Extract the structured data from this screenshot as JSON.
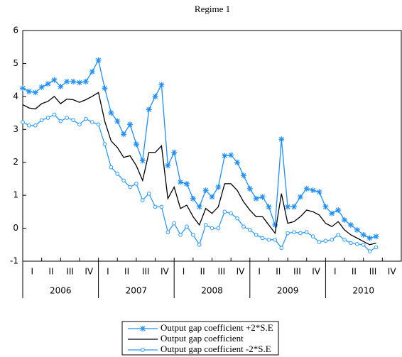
{
  "chart_data": {
    "type": "line",
    "title": "Regime 1",
    "x": [
      2006.0,
      2006.083,
      2006.167,
      2006.25,
      2006.333,
      2006.417,
      2006.5,
      2006.583,
      2006.667,
      2006.75,
      2006.833,
      2006.917,
      2007.0,
      2007.083,
      2007.167,
      2007.25,
      2007.333,
      2007.417,
      2007.5,
      2007.583,
      2007.667,
      2007.75,
      2007.833,
      2007.917,
      2008.0,
      2008.083,
      2008.167,
      2008.25,
      2008.333,
      2008.417,
      2008.5,
      2008.583,
      2008.667,
      2008.75,
      2008.833,
      2008.917,
      2009.0,
      2009.083,
      2009.167,
      2009.25,
      2009.333,
      2009.417,
      2009.5,
      2009.583,
      2009.667,
      2009.75,
      2009.833,
      2009.917,
      2010.0,
      2010.083,
      2010.167,
      2010.25,
      2010.333,
      2010.417,
      2010.5,
      2010.583,
      2010.667
    ],
    "series": [
      {
        "name": "Output gap coefficient +2*S.E",
        "color": "#1f8fff",
        "marker": "star",
        "values": [
          4.25,
          4.15,
          4.12,
          4.28,
          4.38,
          4.5,
          4.3,
          4.45,
          4.45,
          4.42,
          4.45,
          4.75,
          5.1,
          4.25,
          3.5,
          3.25,
          2.85,
          3.15,
          2.55,
          2.05,
          3.6,
          4.0,
          4.35,
          1.9,
          2.3,
          1.4,
          1.35,
          0.9,
          0.65,
          1.15,
          0.95,
          1.25,
          2.2,
          2.22,
          2.0,
          1.6,
          1.2,
          0.9,
          0.95,
          0.65,
          0.1,
          2.7,
          0.65,
          0.65,
          0.95,
          1.2,
          1.15,
          1.1,
          0.65,
          0.45,
          0.55,
          0.25,
          0.1,
          -0.05,
          -0.2,
          -0.3,
          -0.25
        ]
      },
      {
        "name": "Output gap coefficient",
        "color": "#000000",
        "marker": null,
        "values": [
          3.75,
          3.65,
          3.62,
          3.78,
          3.85,
          4.0,
          3.78,
          3.92,
          3.9,
          3.82,
          3.9,
          4.0,
          4.12,
          3.25,
          2.65,
          2.45,
          2.15,
          2.2,
          1.9,
          1.45,
          2.3,
          2.3,
          2.5,
          0.9,
          1.25,
          0.6,
          0.7,
          0.35,
          0.1,
          0.6,
          0.45,
          0.65,
          1.35,
          1.35,
          1.15,
          0.8,
          0.55,
          0.35,
          0.35,
          0.1,
          -0.15,
          1.05,
          0.15,
          0.2,
          0.35,
          0.55,
          0.5,
          0.4,
          0.15,
          0.05,
          0.2,
          -0.05,
          -0.2,
          -0.3,
          -0.4,
          -0.5,
          -0.45
        ]
      },
      {
        "name": "Output gap coefficient -2*S.E",
        "color": "#2a9bff",
        "marker": "circle",
        "values": [
          3.22,
          3.12,
          3.12,
          3.28,
          3.35,
          3.45,
          3.25,
          3.35,
          3.28,
          3.15,
          3.32,
          3.22,
          3.15,
          2.55,
          1.85,
          1.65,
          1.45,
          1.25,
          1.35,
          0.85,
          1.05,
          0.65,
          0.65,
          -0.12,
          0.15,
          -0.2,
          0.05,
          -0.2,
          -0.5,
          0.1,
          0.0,
          0.0,
          0.5,
          0.45,
          0.3,
          0.05,
          -0.05,
          -0.2,
          -0.3,
          -0.35,
          -0.35,
          -0.6,
          -0.15,
          -0.12,
          -0.15,
          -0.12,
          -0.25,
          -0.42,
          -0.38,
          -0.35,
          -0.2,
          -0.35,
          -0.45,
          -0.48,
          -0.5,
          -0.7,
          -0.58
        ]
      }
    ],
    "xlim": [
      2006,
      2011
    ],
    "xticks": [
      {
        "value": 2006.125,
        "label": "I"
      },
      {
        "value": 2006.375,
        "label": "II"
      },
      {
        "value": 2006.625,
        "label": "III"
      },
      {
        "value": 2006.875,
        "label": "IV"
      },
      {
        "value": 2007.125,
        "label": "I"
      },
      {
        "value": 2007.375,
        "label": "II"
      },
      {
        "value": 2007.625,
        "label": "III"
      },
      {
        "value": 2007.875,
        "label": "IV"
      },
      {
        "value": 2008.125,
        "label": "I"
      },
      {
        "value": 2008.375,
        "label": "II"
      },
      {
        "value": 2008.625,
        "label": "III"
      },
      {
        "value": 2008.875,
        "label": "IV"
      },
      {
        "value": 2009.125,
        "label": "I"
      },
      {
        "value": 2009.375,
        "label": "II"
      },
      {
        "value": 2009.625,
        "label": "III"
      },
      {
        "value": 2009.875,
        "label": "IV"
      },
      {
        "value": 2010.125,
        "label": "I"
      },
      {
        "value": 2010.375,
        "label": "II"
      },
      {
        "value": 2010.625,
        "label": "III"
      },
      {
        "value": 2010.875,
        "label": "IV"
      }
    ],
    "year_labels": [
      {
        "value": 2006.5,
        "label": "2006"
      },
      {
        "value": 2007.5,
        "label": "2007"
      },
      {
        "value": 2008.5,
        "label": "2008"
      },
      {
        "value": 2009.5,
        "label": "2009"
      },
      {
        "value": 2010.5,
        "label": "2010"
      }
    ],
    "ylim": [
      -1,
      6
    ],
    "yticks": [
      -1,
      0,
      1,
      2,
      3,
      4,
      5,
      6
    ],
    "grid": false,
    "legend": "bottom"
  }
}
